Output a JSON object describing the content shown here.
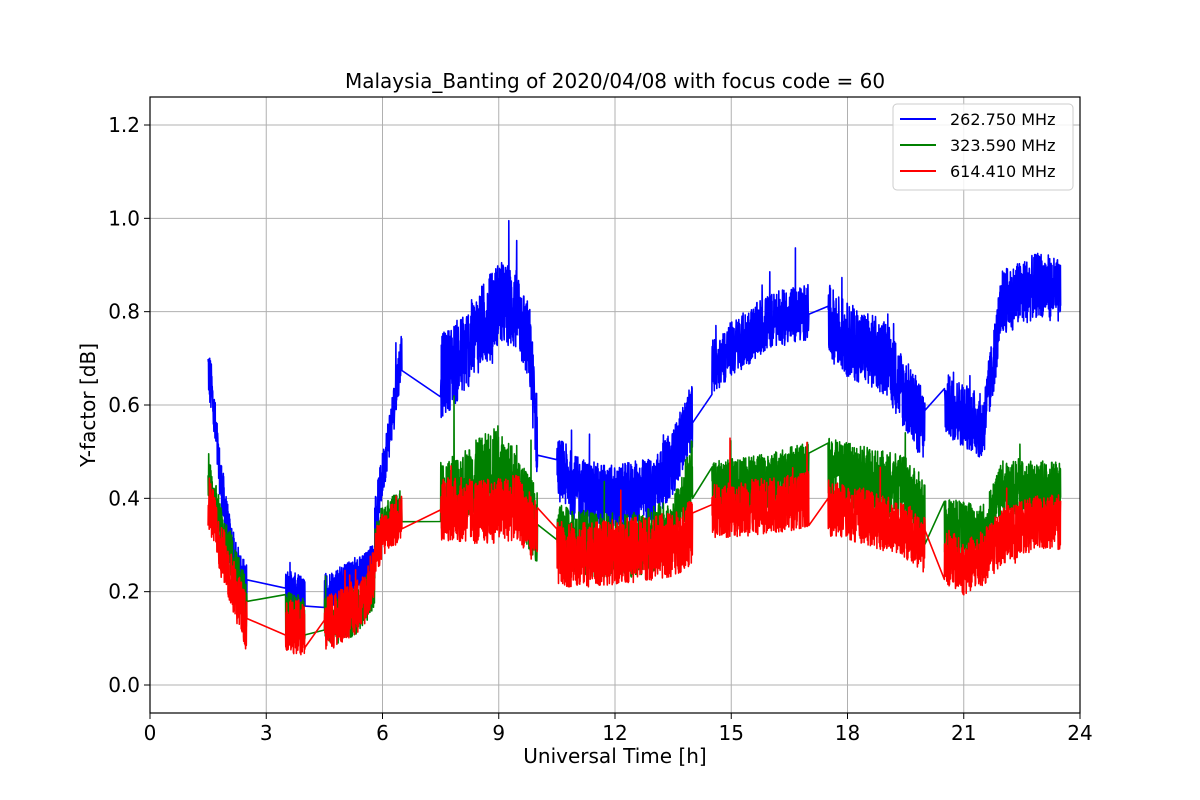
{
  "chart_data": {
    "type": "line",
    "title": "Malaysia_Banting of 2020/04/08 with focus code = 60",
    "xlabel": "Universal Time [h]",
    "ylabel": "Y-factor [dB]",
    "xlim": [
      0,
      24
    ],
    "ylim": [
      -0.06,
      1.26
    ],
    "xticks": [
      0,
      3,
      6,
      9,
      12,
      15,
      18,
      21,
      24
    ],
    "yticks": [
      0.0,
      0.2,
      0.4,
      0.6,
      0.8,
      1.0,
      1.2
    ],
    "ytick_labels": [
      "0.0",
      "0.2",
      "0.4",
      "0.6",
      "0.8",
      "1.0",
      "1.2"
    ],
    "grid": true,
    "legend_position": "top-right",
    "series": [
      {
        "name": "262.750 MHz",
        "color": "#0000ff",
        "segments": [
          {
            "x": [
              1.5,
              1.6,
              1.8,
              2.0,
              2.2,
              2.5
            ],
            "y": [
              0.68,
              0.62,
              0.45,
              0.33,
              0.25,
              0.2
            ],
            "noise": 0.06
          },
          {
            "x": [
              3.5,
              4.0
            ],
            "y": [
              0.21,
              0.19
            ],
            "noise": 0.04
          },
          {
            "x": [
              4.5,
              5.0,
              5.5,
              5.8
            ],
            "y": [
              0.2,
              0.22,
              0.24,
              0.27
            ],
            "noise": 0.04
          },
          {
            "x": [
              5.8,
              6.0,
              6.3,
              6.5
            ],
            "y": [
              0.35,
              0.45,
              0.6,
              0.72
            ],
            "noise": 0.05
          },
          {
            "x": [
              7.5,
              8.0,
              8.5,
              9.0,
              9.5,
              9.8,
              10.0
            ],
            "y": [
              0.66,
              0.7,
              0.76,
              0.82,
              0.8,
              0.72,
              0.52
            ],
            "noise": 0.09
          },
          {
            "x": [
              10.5,
              11.0,
              12.0,
              13.0,
              13.5,
              14.0
            ],
            "y": [
              0.47,
              0.42,
              0.4,
              0.42,
              0.48,
              0.58
            ],
            "noise": 0.07
          },
          {
            "x": [
              14.5,
              15.0,
              16.0,
              17.0
            ],
            "y": [
              0.68,
              0.72,
              0.78,
              0.8
            ],
            "noise": 0.06
          },
          {
            "x": [
              17.5,
              18.0,
              19.0,
              19.5,
              20.0
            ],
            "y": [
              0.78,
              0.74,
              0.7,
              0.62,
              0.55
            ],
            "noise": 0.08
          },
          {
            "x": [
              20.5,
              21.0,
              21.5,
              22.0,
              23.0,
              23.5
            ],
            "y": [
              0.6,
              0.58,
              0.55,
              0.82,
              0.86,
              0.84
            ],
            "noise": 0.07
          }
        ]
      },
      {
        "name": "323.590 MHz",
        "color": "#008000",
        "segments": [
          {
            "x": [
              1.5,
              1.8,
              2.2,
              2.5
            ],
            "y": [
              0.45,
              0.35,
              0.25,
              0.17
            ],
            "noise": 0.05
          },
          {
            "x": [
              3.5,
              4.0
            ],
            "y": [
              0.15,
              0.14
            ],
            "noise": 0.05
          },
          {
            "x": [
              4.5,
              5.0,
              5.5,
              5.8
            ],
            "y": [
              0.14,
              0.14,
              0.17,
              0.22
            ],
            "noise": 0.05
          },
          {
            "x": [
              5.8,
              6.0,
              6.5
            ],
            "y": [
              0.3,
              0.35,
              0.38
            ],
            "noise": 0.04
          },
          {
            "x": [
              7.5,
              8.0,
              9.0,
              10.0
            ],
            "y": [
              0.4,
              0.42,
              0.48,
              0.34
            ],
            "noise": 0.08
          },
          {
            "x": [
              10.5,
              11.5,
              12.5,
              13.5,
              14.0
            ],
            "y": [
              0.32,
              0.3,
              0.3,
              0.33,
              0.46
            ],
            "noise": 0.07
          },
          {
            "x": [
              14.5,
              15.5,
              16.5,
              17.0
            ],
            "y": [
              0.42,
              0.43,
              0.45,
              0.46
            ],
            "noise": 0.06
          },
          {
            "x": [
              17.5,
              18.5,
              19.5,
              20.0
            ],
            "y": [
              0.46,
              0.44,
              0.42,
              0.36
            ],
            "noise": 0.07
          },
          {
            "x": [
              20.5,
              21.5,
              22.0,
              23.5
            ],
            "y": [
              0.34,
              0.33,
              0.42,
              0.42
            ],
            "noise": 0.06
          }
        ]
      },
      {
        "name": "614.410 MHz",
        "color": "#ff0000",
        "segments": [
          {
            "x": [
              1.5,
              1.8,
              2.2,
              2.5
            ],
            "y": [
              0.4,
              0.3,
              0.2,
              0.13
            ],
            "noise": 0.06
          },
          {
            "x": [
              3.5,
              4.0
            ],
            "y": [
              0.13,
              0.12
            ],
            "noise": 0.06
          },
          {
            "x": [
              4.5,
              5.0,
              5.5,
              5.8
            ],
            "y": [
              0.13,
              0.15,
              0.18,
              0.24
            ],
            "noise": 0.06
          },
          {
            "x": [
              5.8,
              6.0,
              6.5
            ],
            "y": [
              0.28,
              0.32,
              0.36
            ],
            "noise": 0.05
          },
          {
            "x": [
              7.5,
              8.5,
              9.5,
              10.0
            ],
            "y": [
              0.38,
              0.37,
              0.38,
              0.32
            ],
            "noise": 0.07
          },
          {
            "x": [
              10.5,
              11.5,
              12.5,
              13.5,
              14.0
            ],
            "y": [
              0.28,
              0.28,
              0.29,
              0.3,
              0.33
            ],
            "noise": 0.07
          },
          {
            "x": [
              14.5,
              15.5,
              16.5,
              17.0
            ],
            "y": [
              0.37,
              0.38,
              0.39,
              0.4
            ],
            "noise": 0.06
          },
          {
            "x": [
              17.5,
              18.5,
              19.5,
              20.0
            ],
            "y": [
              0.38,
              0.36,
              0.33,
              0.3
            ],
            "noise": 0.06
          },
          {
            "x": [
              20.5,
              21.0,
              21.5,
              22.0,
              23.0,
              23.5
            ],
            "y": [
              0.28,
              0.25,
              0.27,
              0.32,
              0.35,
              0.35
            ],
            "noise": 0.06
          }
        ]
      }
    ]
  }
}
